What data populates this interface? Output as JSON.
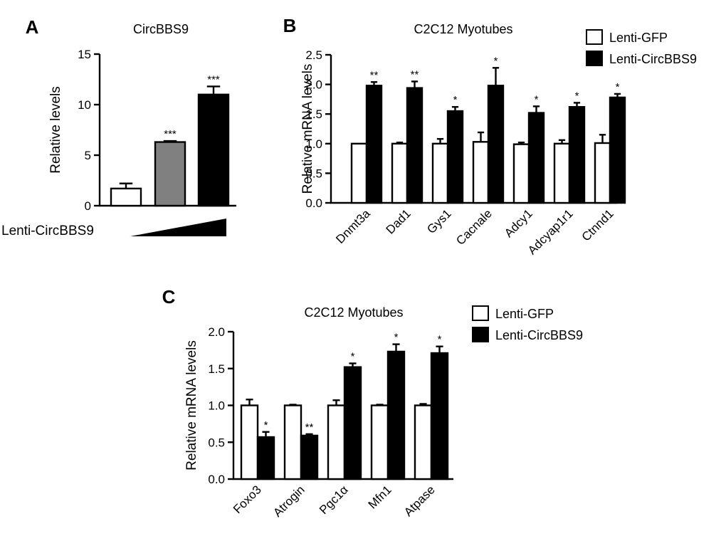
{
  "chart_data": [
    {
      "panel_label": "A",
      "type": "bar",
      "title": "CircBBS9",
      "ylabel": "Relative levels",
      "ylim": [
        0,
        15
      ],
      "yticks": [
        "0",
        "5",
        "10",
        "15"
      ],
      "categories": [
        "",
        "",
        ""
      ],
      "values": [
        1.7,
        6.3,
        11.0
      ],
      "errors": [
        0.5,
        0.1,
        0.8
      ],
      "significance": [
        "",
        "***",
        "***"
      ],
      "bar_colors": [
        "#ffffff",
        "#808080",
        "#000000"
      ],
      "treatment_label": "Lenti-CircBBS9"
    },
    {
      "panel_label": "B",
      "type": "bar",
      "title": "C2C12 Myotubes",
      "ylabel": "Relative mRNA levels",
      "ylim": [
        0,
        2.5
      ],
      "yticks": [
        "0.0",
        "0.5",
        "1.0",
        "1.5",
        "2.0",
        "2.5"
      ],
      "categories": [
        "Dnmt3a",
        "Dad1",
        "Gys1",
        "Cacnale",
        "Adcy1",
        "Adcyap1r1",
        "Ctnnd1"
      ],
      "legend_position": "top-right",
      "series": [
        {
          "name": "Lenti-GFP",
          "color": "#ffffff",
          "values": [
            1.0,
            1.0,
            1.0,
            1.03,
            0.99,
            1.0,
            1.01
          ],
          "errors": [
            0.0,
            0.02,
            0.08,
            0.16,
            0.03,
            0.06,
            0.14
          ],
          "significance": [
            "",
            "",
            "",
            "",
            "",
            "",
            ""
          ]
        },
        {
          "name": "Lenti-CircBBS9",
          "color": "#000000",
          "values": [
            1.98,
            1.94,
            1.55,
            1.98,
            1.52,
            1.62,
            1.78
          ],
          "errors": [
            0.06,
            0.11,
            0.07,
            0.3,
            0.11,
            0.07,
            0.06
          ],
          "significance": [
            "**",
            "**",
            "*",
            "*",
            "*",
            "*",
            "*"
          ]
        }
      ]
    },
    {
      "panel_label": "C",
      "type": "bar",
      "title": "C2C12 Myotubes",
      "ylabel": "Relative mRNA levels",
      "ylim": [
        0,
        2.0
      ],
      "yticks": [
        "0.0",
        "0.5",
        "1.0",
        "1.5",
        "2.0"
      ],
      "categories": [
        "Foxo3",
        "Atrogin",
        "Pgc1α",
        "Mfn1",
        "Atpase"
      ],
      "legend_position": "top-right",
      "series": [
        {
          "name": "Lenti-GFP",
          "color": "#ffffff",
          "values": [
            1.0,
            1.0,
            1.0,
            1.0,
            1.0
          ],
          "errors": [
            0.08,
            0.01,
            0.07,
            0.01,
            0.02
          ],
          "significance": [
            "",
            "",
            "",
            "",
            ""
          ]
        },
        {
          "name": "Lenti-CircBBS9",
          "color": "#000000",
          "values": [
            0.57,
            0.59,
            1.52,
            1.73,
            1.71
          ],
          "errors": [
            0.07,
            0.02,
            0.05,
            0.1,
            0.09
          ],
          "significance": [
            "*",
            "**",
            "*",
            "*",
            "*"
          ]
        }
      ]
    }
  ]
}
